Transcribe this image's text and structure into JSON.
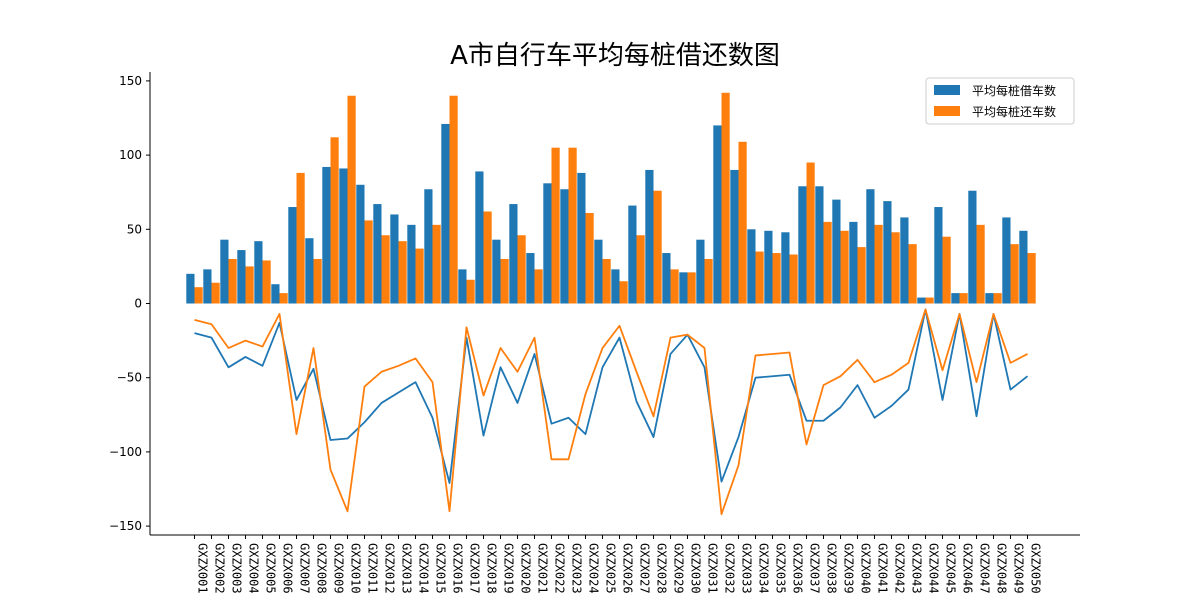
{
  "chart_data": {
    "type": "bar",
    "title": "A市自行车平均每桩借还数图",
    "xlabel": "",
    "ylabel": "",
    "ylim": [
      -156,
      156
    ],
    "yticks": [
      -150,
      -100,
      -50,
      0,
      50,
      100,
      150
    ],
    "ytick_labels": [
      "−150",
      "−100",
      "−50",
      "0",
      "50",
      "100",
      "150"
    ],
    "legend_position": "top-right",
    "grid": false,
    "categories": [
      "GXZX001",
      "GXZX002",
      "GXZX003",
      "GXZX004",
      "GXZX005",
      "GXZX006",
      "GXZX007",
      "GXZX008",
      "GXZX009",
      "GXZX010",
      "GXZX011",
      "GXZX012",
      "GXZX013",
      "GXZX014",
      "GXZX015",
      "GXZX016",
      "GXZX017",
      "GXZX018",
      "GXZX019",
      "GXZX020",
      "GXZX021",
      "GXZX022",
      "GXZX023",
      "GXZX024",
      "GXZX025",
      "GXZX026",
      "GXZX027",
      "GXZX028",
      "GXZX029",
      "GXZX030",
      "GXZX031",
      "GXZX032",
      "GXZX033",
      "GXZX034",
      "GXZX035",
      "GXZX036",
      "GXZX037",
      "GXZX038",
      "GXZX039",
      "GXZX040",
      "GXZX041",
      "GXZX042",
      "GXZX043",
      "GXZX044",
      "GXZX045",
      "GXZX046",
      "GXZX047",
      "GXZX048",
      "GXZX049",
      "GXZX050"
    ],
    "series": [
      {
        "name": "平均每桩借车数",
        "kind": "bar",
        "color": "#1f77b4",
        "values": [
          20,
          23,
          43,
          36,
          42,
          13,
          65,
          44,
          92,
          91,
          80,
          67,
          60,
          53,
          77,
          121,
          23,
          89,
          43,
          67,
          34,
          81,
          77,
          88,
          43,
          23,
          66,
          90,
          34,
          21,
          43,
          120,
          90,
          50,
          49,
          48,
          79,
          79,
          70,
          55,
          77,
          69,
          58,
          4,
          65,
          7,
          76,
          7,
          58,
          49
        ]
      },
      {
        "name": "平均每桩还车数",
        "kind": "bar",
        "color": "#ff7f0e",
        "values": [
          11,
          14,
          30,
          25,
          29,
          7,
          88,
          30,
          112,
          140,
          56,
          46,
          42,
          37,
          53,
          140,
          16,
          62,
          30,
          46,
          23,
          105,
          105,
          61,
          30,
          15,
          46,
          76,
          23,
          21,
          30,
          142,
          109,
          35,
          34,
          33,
          95,
          55,
          49,
          38,
          53,
          48,
          40,
          4,
          45,
          7,
          53,
          7,
          40,
          34
        ]
      },
      {
        "kind": "line",
        "color": "#1f77b4",
        "values": [
          -20,
          -23,
          -43,
          -36,
          -42,
          -13,
          -65,
          -44,
          -92,
          -91,
          -80,
          -67,
          -60,
          -53,
          -77,
          -121,
          -23,
          -89,
          -43,
          -67,
          -34,
          -81,
          -77,
          -88,
          -43,
          -23,
          -66,
          -90,
          -34,
          -21,
          -43,
          -120,
          -90,
          -50,
          -49,
          -48,
          -79,
          -79,
          -70,
          -55,
          -77,
          -69,
          -58,
          -4,
          -65,
          -7,
          -76,
          -7,
          -58,
          -49
        ]
      },
      {
        "kind": "line",
        "color": "#ff7f0e",
        "values": [
          -11,
          -14,
          -30,
          -25,
          -29,
          -7,
          -88,
          -30,
          -112,
          -140,
          -56,
          -46,
          -42,
          -37,
          -53,
          -140,
          -16,
          -62,
          -30,
          -46,
          -23,
          -105,
          -105,
          -61,
          -30,
          -15,
          -46,
          -76,
          -23,
          -21,
          -30,
          -142,
          -109,
          -35,
          -34,
          -33,
          -95,
          -55,
          -49,
          -38,
          -53,
          -48,
          -40,
          -4,
          -45,
          -7,
          -53,
          -7,
          -40,
          -34
        ]
      }
    ]
  }
}
